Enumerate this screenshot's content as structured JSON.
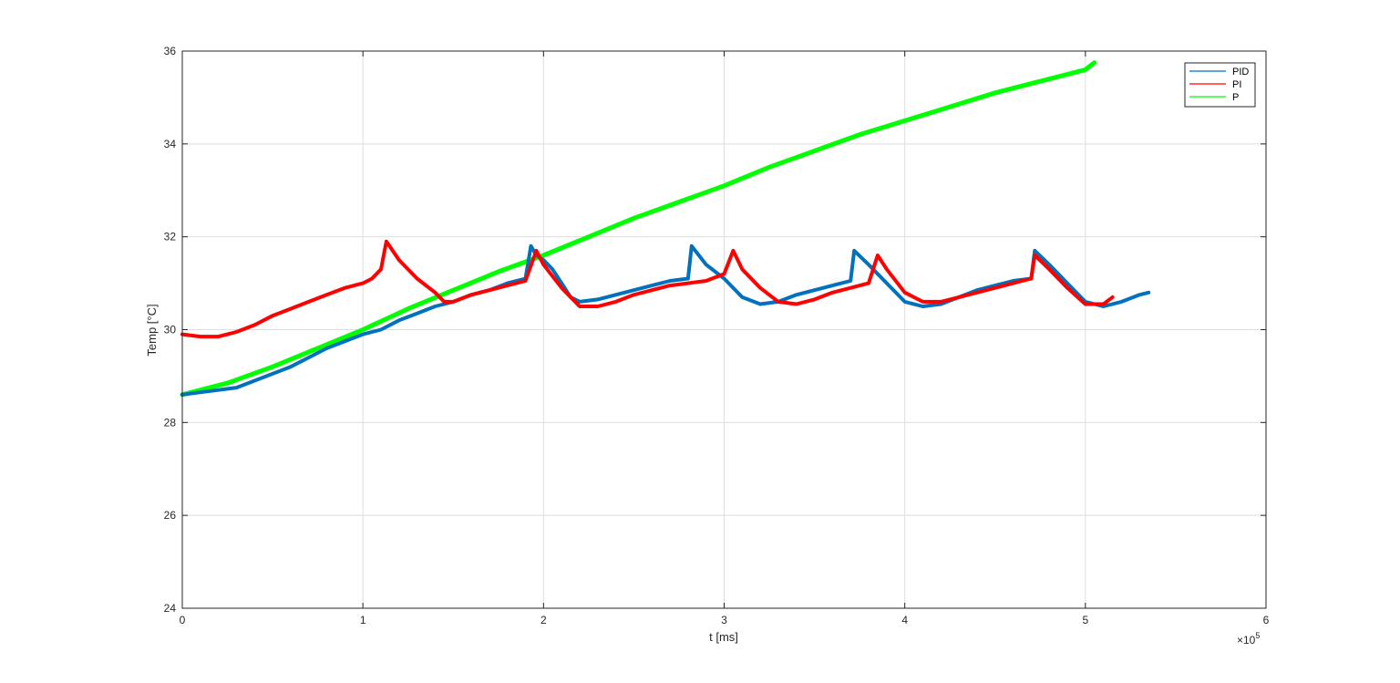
{
  "chart_data": {
    "type": "line",
    "title": "",
    "xlabel": "t [ms]",
    "ylabel": "Temp [°C]",
    "x_exponent_label": "×10",
    "x_exponent_power": "5",
    "xlim": [
      0,
      6
    ],
    "ylim": [
      24,
      36
    ],
    "x_ticks": [
      0,
      1,
      2,
      3,
      4,
      5,
      6
    ],
    "x_tick_labels": [
      "0",
      "1",
      "2",
      "3",
      "4",
      "5",
      "6"
    ],
    "y_ticks": [
      24,
      26,
      28,
      30,
      32,
      34,
      36
    ],
    "y_tick_labels": [
      "24",
      "26",
      "28",
      "30",
      "32",
      "34",
      "36"
    ],
    "grid": true,
    "legend_position": "top-right",
    "series": [
      {
        "name": "PID",
        "color": "#0072BD",
        "x": [
          0,
          0.1,
          0.2,
          0.3,
          0.4,
          0.5,
          0.6,
          0.7,
          0.8,
          0.9,
          1.0,
          1.1,
          1.2,
          1.3,
          1.4,
          1.5,
          1.6,
          1.7,
          1.8,
          1.9,
          1.93,
          1.96,
          2.0,
          2.05,
          2.1,
          2.15,
          2.2,
          2.3,
          2.4,
          2.5,
          2.6,
          2.7,
          2.8,
          2.82,
          2.9,
          3.0,
          3.1,
          3.2,
          3.3,
          3.4,
          3.5,
          3.6,
          3.7,
          3.72,
          3.8,
          3.9,
          4.0,
          4.1,
          4.2,
          4.3,
          4.4,
          4.5,
          4.6,
          4.7,
          4.72,
          4.8,
          4.9,
          5.0,
          5.1,
          5.2,
          5.3,
          5.35
        ],
        "y": [
          28.6,
          28.65,
          28.7,
          28.75,
          28.9,
          29.05,
          29.2,
          29.4,
          29.6,
          29.75,
          29.9,
          30.0,
          30.2,
          30.35,
          30.5,
          30.6,
          30.75,
          30.85,
          31.0,
          31.1,
          31.8,
          31.6,
          31.5,
          31.3,
          31.0,
          30.7,
          30.6,
          30.65,
          30.75,
          30.85,
          30.95,
          31.05,
          31.1,
          31.8,
          31.4,
          31.1,
          30.7,
          30.55,
          30.6,
          30.75,
          30.85,
          30.95,
          31.05,
          31.7,
          31.4,
          31.0,
          30.6,
          30.5,
          30.55,
          30.7,
          30.85,
          30.95,
          31.05,
          31.1,
          31.7,
          31.4,
          31.0,
          30.6,
          30.5,
          30.6,
          30.75,
          30.8
        ]
      },
      {
        "name": "PI",
        "color": "#FF0000",
        "x": [
          0,
          0.1,
          0.2,
          0.3,
          0.4,
          0.5,
          0.6,
          0.7,
          0.8,
          0.9,
          1.0,
          1.05,
          1.1,
          1.13,
          1.2,
          1.3,
          1.4,
          1.45,
          1.5,
          1.6,
          1.7,
          1.8,
          1.9,
          1.96,
          2.0,
          2.1,
          2.2,
          2.3,
          2.4,
          2.5,
          2.6,
          2.7,
          2.8,
          2.9,
          3.0,
          3.05,
          3.1,
          3.2,
          3.3,
          3.4,
          3.5,
          3.6,
          3.7,
          3.8,
          3.85,
          3.9,
          4.0,
          4.1,
          4.2,
          4.3,
          4.4,
          4.5,
          4.6,
          4.7,
          4.72,
          4.8,
          4.9,
          5.0,
          5.1,
          5.15
        ],
        "y": [
          29.9,
          29.85,
          29.85,
          29.95,
          30.1,
          30.3,
          30.45,
          30.6,
          30.75,
          30.9,
          31.0,
          31.1,
          31.3,
          31.9,
          31.5,
          31.1,
          30.8,
          30.6,
          30.6,
          30.75,
          30.85,
          30.95,
          31.05,
          31.7,
          31.4,
          30.9,
          30.5,
          30.5,
          30.6,
          30.75,
          30.85,
          30.95,
          31.0,
          31.05,
          31.2,
          31.7,
          31.3,
          30.9,
          30.6,
          30.55,
          30.65,
          30.8,
          30.9,
          31.0,
          31.6,
          31.3,
          30.8,
          30.6,
          30.6,
          30.7,
          30.8,
          30.9,
          31.0,
          31.1,
          31.6,
          31.3,
          30.9,
          30.55,
          30.55,
          30.7
        ]
      },
      {
        "name": "P",
        "color": "#00FF00",
        "x": [
          0,
          0.25,
          0.5,
          0.75,
          1.0,
          1.25,
          1.5,
          1.75,
          2.0,
          2.25,
          2.5,
          2.75,
          3.0,
          3.25,
          3.5,
          3.75,
          4.0,
          4.25,
          4.5,
          4.75,
          5.0,
          5.05
        ],
        "y": [
          28.6,
          28.85,
          29.2,
          29.6,
          30.0,
          30.45,
          30.85,
          31.25,
          31.6,
          32.0,
          32.4,
          32.75,
          33.1,
          33.5,
          33.85,
          34.2,
          34.5,
          34.8,
          35.1,
          35.35,
          35.6,
          35.75
        ]
      }
    ]
  }
}
